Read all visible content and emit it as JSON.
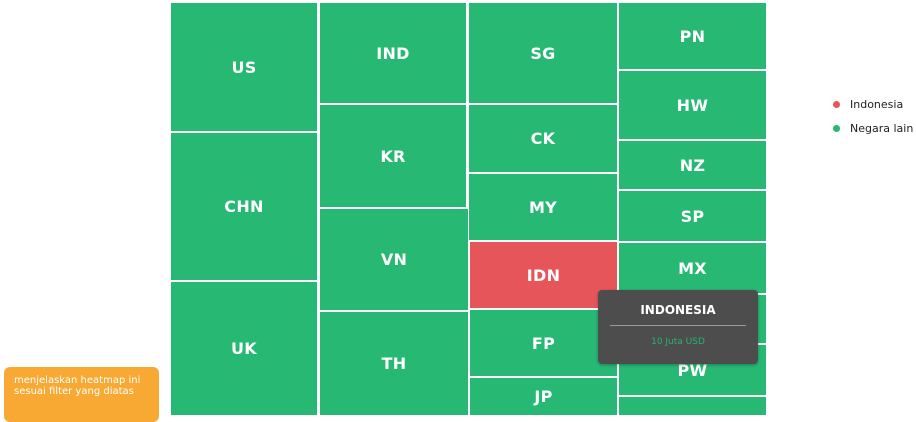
{
  "chart_data": {
    "type": "heatmap",
    "legend_position": "top-right",
    "colors": {
      "indonesia": "#e65559",
      "other": "#27b874"
    },
    "legend": [
      {
        "label": "Indonesia",
        "color": "#e65559"
      },
      {
        "label": "Negara lain",
        "color": "#27b874"
      }
    ],
    "cells": [
      {
        "label": "US",
        "group": "other"
      },
      {
        "label": "CHN",
        "group": "other"
      },
      {
        "label": "UK",
        "group": "other"
      },
      {
        "label": "IND",
        "group": "other"
      },
      {
        "label": "KR",
        "group": "other"
      },
      {
        "label": "VN",
        "group": "other"
      },
      {
        "label": "TH",
        "group": "other"
      },
      {
        "label": "SG",
        "group": "other"
      },
      {
        "label": "CK",
        "group": "other"
      },
      {
        "label": "MY",
        "group": "other"
      },
      {
        "label": "IDN",
        "group": "indonesia"
      },
      {
        "label": "FP",
        "group": "other"
      },
      {
        "label": "JP",
        "group": "other"
      },
      {
        "label": "PN",
        "group": "other"
      },
      {
        "label": "HW",
        "group": "other"
      },
      {
        "label": "NZ",
        "group": "other"
      },
      {
        "label": "SP",
        "group": "other"
      },
      {
        "label": "MX",
        "group": "other"
      },
      {
        "label": "",
        "group": "other"
      },
      {
        "label": "PW",
        "group": "other"
      },
      {
        "label": "",
        "group": "other"
      }
    ],
    "tooltip": {
      "title": "INDONESIA",
      "value": "10 Juta USD"
    }
  },
  "note": {
    "text": "menjelaskan heatmap ini sesuai filter yang diatas"
  }
}
